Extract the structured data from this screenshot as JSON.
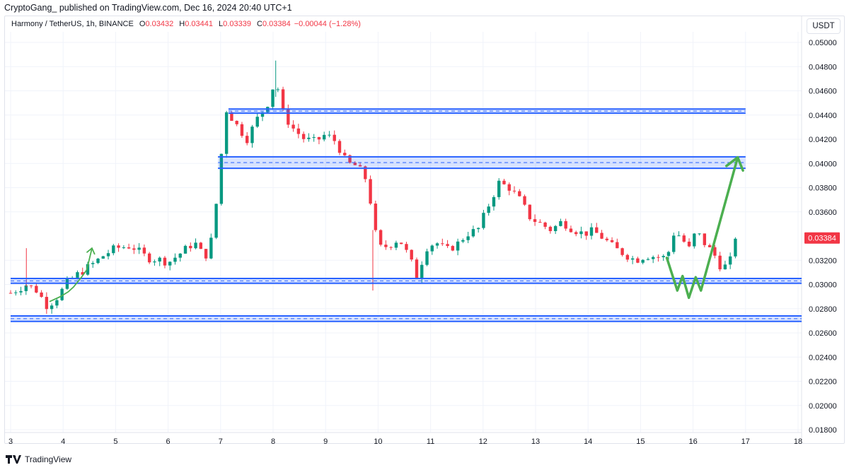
{
  "header": {
    "publish_line": "CryptoGang_ published on TradingView.com, Dec 16, 2024 20:40 UTC+1"
  },
  "legend": {
    "symbol": "Harmony / TetherUS, 1h, BINANCE",
    "open_label": "O",
    "open": "0.03432",
    "high_label": "H",
    "high": "0.03441",
    "low_label": "L",
    "low": "0.03339",
    "close_label": "C",
    "close": "0.03384",
    "change": "−0.00044 (−1.28%)"
  },
  "currency_button": "USDT",
  "last_price_tag": "0.03384",
  "footer": {
    "brand": "TradingView"
  },
  "colors": {
    "up": "#089981",
    "down": "#f23645",
    "zone_line": "#2962ff",
    "zone_fill": "#2962ff",
    "arrow": "#4caf50",
    "grid": "#f0f3fa",
    "axis_text": "#131722"
  },
  "chart_data": {
    "type": "candlestick",
    "title": "Harmony / TetherUS, 1h, BINANCE",
    "xlabel": "",
    "ylabel": "USDT",
    "x_ticks": [
      "3",
      "4",
      "5",
      "6",
      "7",
      "8",
      "9",
      "10",
      "11",
      "12",
      "13",
      "14",
      "15",
      "16",
      "17",
      "18"
    ],
    "y_ticks": [
      "0.05000",
      "0.04800",
      "0.04600",
      "0.04400",
      "0.04200",
      "0.04000",
      "0.03800",
      "0.03600",
      "0.03200",
      "0.03000",
      "0.02800",
      "0.02600",
      "0.02400",
      "0.02200",
      "0.02000",
      "0.01800"
    ],
    "ylim": [
      0.018,
      0.0508
    ],
    "xlim": [
      3.0,
      18.7
    ],
    "grid": true,
    "last_price": 0.03384,
    "ohlc_last": {
      "open": 0.03432,
      "high": 0.03441,
      "low": 0.03339,
      "close": 0.03384,
      "change": -0.00044,
      "change_pct": -1.28
    },
    "price_path_keypoints": [
      [
        3.0,
        0.0293
      ],
      [
        3.3,
        0.03
      ],
      [
        3.5,
        0.0295
      ],
      [
        3.7,
        0.0282
      ],
      [
        3.9,
        0.029
      ],
      [
        4.1,
        0.0303
      ],
      [
        4.4,
        0.0312
      ],
      [
        4.6,
        0.0318
      ],
      [
        4.8,
        0.0325
      ],
      [
        5.0,
        0.033
      ],
      [
        5.3,
        0.0332
      ],
      [
        5.6,
        0.0322
      ],
      [
        5.9,
        0.032
      ],
      [
        6.0,
        0.0318
      ],
      [
        6.3,
        0.0328
      ],
      [
        6.5,
        0.0335
      ],
      [
        6.7,
        0.0322
      ],
      [
        6.85,
        0.034
      ],
      [
        6.95,
        0.038
      ],
      [
        7.1,
        0.0445
      ],
      [
        7.3,
        0.0432
      ],
      [
        7.5,
        0.042
      ],
      [
        7.7,
        0.0437
      ],
      [
        7.9,
        0.045
      ],
      [
        8.05,
        0.047
      ],
      [
        8.2,
        0.044
      ],
      [
        8.4,
        0.0428
      ],
      [
        8.6,
        0.042
      ],
      [
        8.8,
        0.0418
      ],
      [
        9.0,
        0.0424
      ],
      [
        9.2,
        0.0418
      ],
      [
        9.4,
        0.04
      ],
      [
        9.6,
        0.0398
      ],
      [
        9.8,
        0.0385
      ],
      [
        9.9,
        0.0355
      ],
      [
        10.0,
        0.033
      ],
      [
        10.2,
        0.0332
      ],
      [
        10.4,
        0.0338
      ],
      [
        10.6,
        0.0322
      ],
      [
        10.75,
        0.0305
      ],
      [
        10.9,
        0.033
      ],
      [
        11.1,
        0.0335
      ],
      [
        11.3,
        0.0328
      ],
      [
        11.5,
        0.0333
      ],
      [
        11.7,
        0.0342
      ],
      [
        11.9,
        0.0345
      ],
      [
        12.1,
        0.0365
      ],
      [
        12.3,
        0.0384
      ],
      [
        12.5,
        0.038
      ],
      [
        12.7,
        0.037
      ],
      [
        12.9,
        0.0355
      ],
      [
        13.1,
        0.035
      ],
      [
        13.3,
        0.0345
      ],
      [
        13.5,
        0.0352
      ],
      [
        13.7,
        0.0346
      ],
      [
        13.9,
        0.0342
      ],
      [
        14.1,
        0.0344
      ],
      [
        14.3,
        0.0338
      ],
      [
        14.5,
        0.033
      ],
      [
        14.7,
        0.0325
      ],
      [
        14.9,
        0.032
      ],
      [
        15.1,
        0.0324
      ],
      [
        15.3,
        0.0323
      ],
      [
        15.5,
        0.0322
      ],
      [
        15.65,
        0.0345
      ],
      [
        15.8,
        0.0337
      ],
      [
        15.95,
        0.0328
      ],
      [
        16.05,
        0.0345
      ],
      [
        16.2,
        0.0335
      ],
      [
        16.4,
        0.0325
      ],
      [
        16.55,
        0.0313
      ],
      [
        16.7,
        0.0318
      ],
      [
        16.8,
        0.034
      ],
      [
        16.85,
        0.0338
      ]
    ],
    "drawings": {
      "zones": [
        {
          "name": "resistance-zone-upper",
          "top": 0.0445,
          "bottom": 0.04415,
          "x_start": 7.15,
          "x_end": 17.0
        },
        {
          "name": "resistance-zone-lower",
          "top": 0.04055,
          "bottom": 0.0396,
          "x_start": 6.95,
          "x_end": 17.0
        },
        {
          "name": "support-zone-upper",
          "top": 0.0305,
          "bottom": 0.0301,
          "x_start": 3.0,
          "x_end": 18.7
        },
        {
          "name": "support-zone-lower",
          "top": 0.0274,
          "bottom": 0.02695,
          "x_start": 3.0,
          "x_end": 18.7
        }
      ],
      "projection_arrows": [
        {
          "name": "historic-arrow",
          "points": [
            [
              3.75,
              0.0286
            ],
            [
              3.95,
              0.029
            ],
            [
              4.1,
              0.0294
            ],
            [
              4.2,
              0.0298
            ],
            [
              4.35,
              0.0306
            ],
            [
              4.45,
              0.0312
            ],
            [
              4.55,
              0.033
            ]
          ]
        },
        {
          "name": "forecast-arrow",
          "points": [
            [
              15.5,
              0.0322
            ],
            [
              15.7,
              0.0295
            ],
            [
              15.8,
              0.0307
            ],
            [
              15.92,
              0.0289
            ],
            [
              16.05,
              0.0306
            ],
            [
              16.15,
              0.0295
            ],
            [
              16.85,
              0.0405
            ]
          ]
        }
      ]
    }
  }
}
